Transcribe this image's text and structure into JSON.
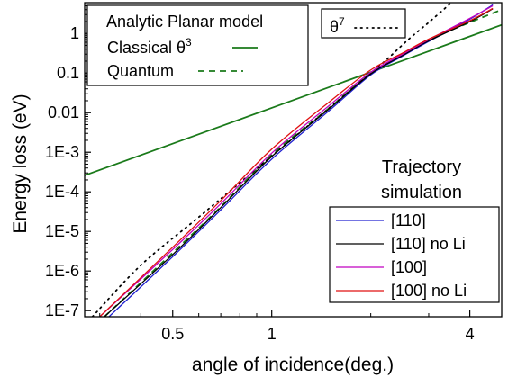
{
  "chart_data": {
    "type": "line",
    "xlabel": "angle of incidence(deg.)",
    "ylabel": "Energy loss (eV)",
    "x_scale": "log",
    "y_scale": "log",
    "xlim": [
      0.27,
      5.0
    ],
    "ylim": [
      7e-08,
      6
    ],
    "x_ticks": [
      {
        "value": 0.5,
        "label": "0.5"
      },
      {
        "value": 1,
        "label": "1"
      },
      {
        "value": 4,
        "label": "4"
      }
    ],
    "y_ticks": [
      {
        "value": 1,
        "label": "1"
      },
      {
        "value": 0.1,
        "label": "0.1"
      },
      {
        "value": 0.01,
        "label": "0.01"
      },
      {
        "value": 0.001,
        "label": "1E-3"
      },
      {
        "value": 0.0001,
        "label": "1E-4"
      },
      {
        "value": 1e-05,
        "label": "1E-5"
      },
      {
        "value": 1e-06,
        "label": "1E-6"
      },
      {
        "value": 1e-07,
        "label": "1E-7"
      }
    ],
    "legend_model": {
      "title": "Analytic Planar model",
      "entries": [
        {
          "label": "Classical θ",
          "sup": "3",
          "color": "#1a7a1a",
          "dash": "solid"
        },
        {
          "label": "Quantum",
          "sup": "",
          "color": "#1a7a1a",
          "dash": "dashed"
        }
      ]
    },
    "legend_theta7": {
      "label": "θ",
      "sup": "7",
      "color": "#000000",
      "dash": "dotted"
    },
    "legend_sim": {
      "title_lines": [
        "Trajectory",
        "simulation"
      ],
      "entries": [
        {
          "label": "[110]",
          "color": "#2020d0"
        },
        {
          "label": "[110] no Li",
          "color": "#000000"
        },
        {
          "label": "[100]",
          "color": "#c000c0"
        },
        {
          "label": "[100] no Li",
          "color": "#e01010"
        }
      ]
    },
    "series": [
      {
        "name": "Classical θ3",
        "color": "#1a7a1a",
        "dash": "solid",
        "width": 1.8,
        "points": [
          [
            0.27,
            0.00026
          ],
          [
            1,
            0.0132
          ],
          [
            2,
            0.1056
          ],
          [
            5.0,
            1.65
          ]
        ]
      },
      {
        "name": "Quantum",
        "color": "#1a7a1a",
        "dash": "dashed",
        "width": 1.8,
        "points": [
          [
            0.31,
            7e-08
          ],
          [
            0.5,
            2.9e-06
          ],
          [
            0.7,
            4.2e-05
          ],
          [
            1,
            0.00086
          ],
          [
            1.5,
            0.0134
          ],
          [
            2,
            0.1
          ],
          [
            2.5,
            0.29
          ],
          [
            3,
            0.7
          ],
          [
            4,
            1.9
          ],
          [
            5.0,
            4.0
          ]
        ]
      },
      {
        "name": "θ7",
        "color": "#000000",
        "dash": "dotted",
        "width": 1.8,
        "points": [
          [
            0.285,
            7e-08
          ],
          [
            0.4,
            1.4e-06
          ],
          [
            0.6,
            2.3e-05
          ],
          [
            1,
            0.0008
          ],
          [
            1.5,
            0.0134
          ],
          [
            2,
            0.1
          ],
          [
            2.25,
            0.23
          ],
          [
            2.6,
            0.7
          ],
          [
            3.0,
            1.9
          ],
          [
            3.5,
            5.8
          ]
        ]
      },
      {
        "name": "[110]",
        "color": "#2020d0",
        "dash": "solid",
        "width": 1.3,
        "points": [
          [
            0.32,
            7e-08
          ],
          [
            0.5,
            2.3e-06
          ],
          [
            0.7,
            3.5e-05
          ],
          [
            1,
            0.00067
          ],
          [
            1.5,
            0.0115
          ],
          [
            2,
            0.09
          ],
          [
            2.5,
            0.27
          ],
          [
            3,
            0.63
          ],
          [
            4,
            2.3
          ],
          [
            4.7,
            5.3
          ]
        ]
      },
      {
        "name": "[110] no Li",
        "color": "#000000",
        "dash": "solid",
        "width": 1.3,
        "points": [
          [
            0.31,
            7e-08
          ],
          [
            0.5,
            2.6e-06
          ],
          [
            0.7,
            4e-05
          ],
          [
            1,
            0.00078
          ],
          [
            1.5,
            0.0128
          ],
          [
            2,
            0.095
          ],
          [
            2.5,
            0.28
          ],
          [
            3,
            0.65
          ],
          [
            4,
            2.0
          ],
          [
            4.7,
            4.2
          ]
        ]
      },
      {
        "name": "[100]",
        "color": "#c000c0",
        "dash": "solid",
        "width": 1.3,
        "points": [
          [
            0.3,
            7e-08
          ],
          [
            0.5,
            3.5e-06
          ],
          [
            0.7,
            5e-05
          ],
          [
            1,
            0.00095
          ],
          [
            1.5,
            0.0155
          ],
          [
            2,
            0.105
          ],
          [
            2.5,
            0.3
          ],
          [
            3,
            0.7
          ],
          [
            4,
            2.4
          ],
          [
            4.7,
            5.0
          ]
        ]
      },
      {
        "name": "[100] no Li",
        "color": "#e01010",
        "dash": "solid",
        "width": 1.3,
        "points": [
          [
            0.3,
            7e-08
          ],
          [
            0.5,
            4e-06
          ],
          [
            0.7,
            6e-05
          ],
          [
            1,
            0.0012
          ],
          [
            1.5,
            0.019
          ],
          [
            2,
            0.12
          ],
          [
            2.5,
            0.32
          ],
          [
            3,
            0.72
          ],
          [
            4,
            2.1
          ],
          [
            4.7,
            4.3
          ]
        ]
      }
    ]
  }
}
